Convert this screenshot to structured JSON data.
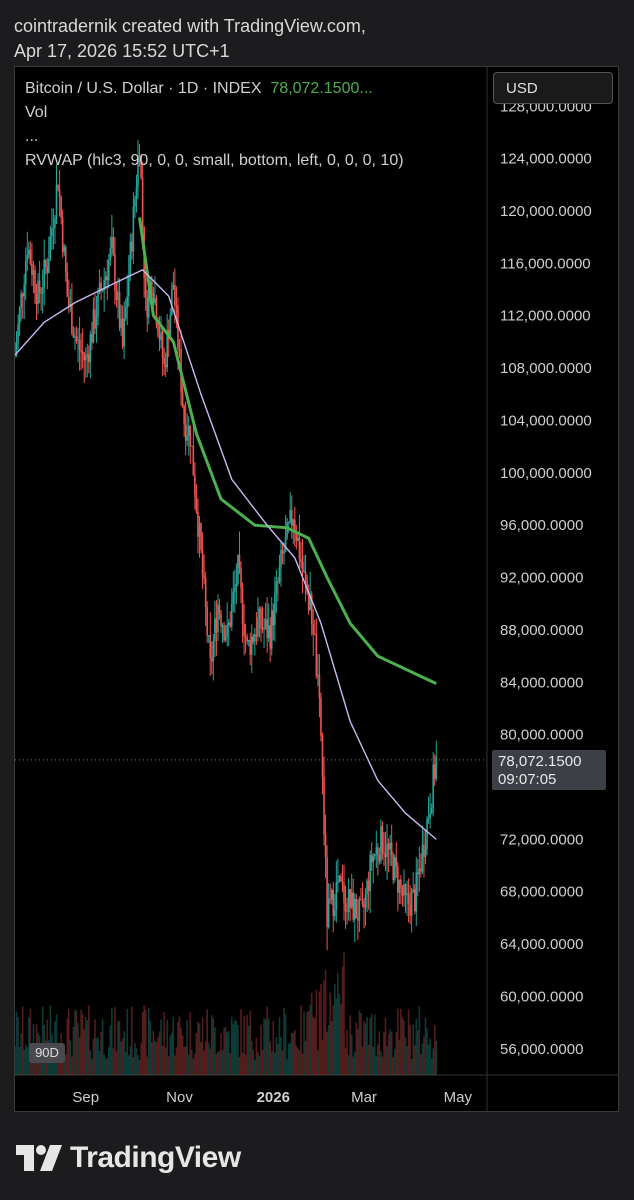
{
  "header": {
    "line1": "cointradernik created with TradingView.com,",
    "line2": "Apr 17, 2026 15:52 UTC+1"
  },
  "legend": {
    "symbol": "Bitcoin / U.S. Dollar · 1D · INDEX",
    "price": "78,072.1500...",
    "vol": "Vol",
    "more": "...",
    "indicator": "RVWAP (hlc3, 90, 0, 0, small, bottom, left, 0, 0, 0, 10)"
  },
  "currency_button": "USD",
  "price_tag": {
    "price": "78,072.1500",
    "countdown": "09:07:05"
  },
  "range_button": "90D",
  "footer": {
    "brand": "TradingView"
  },
  "colors": {
    "up": "#26a69a",
    "down": "#ef5350",
    "vwap_long": "#4caf50",
    "vwap_short": "#c9b8f2",
    "background": "#000000",
    "page": "#1c1c1e"
  },
  "icons": {
    "logo": "tradingview-logo-icon"
  },
  "chart_data": {
    "type": "candlestick",
    "title": "Bitcoin / U.S. Dollar · 1D · INDEX",
    "last_price": 78072.15,
    "ylim": [
      54000,
      131000
    ],
    "y_ticks": [
      "128,000.0000",
      "124,000.0000",
      "120,000.0000",
      "116,000.0000",
      "112,000.0000",
      "108,000.0000",
      "104,000.0000",
      "100,000.0000",
      "96,000.0000",
      "92,000.0000",
      "88,000.0000",
      "84,000.0000",
      "80,000.0000",
      "72,000.0000",
      "68,000.0000",
      "64,000.0000",
      "60,000.0000",
      "56,000.0000"
    ],
    "y_tick_values": [
      128000,
      124000,
      120000,
      116000,
      112000,
      108000,
      104000,
      100000,
      96000,
      92000,
      88000,
      84000,
      80000,
      72000,
      68000,
      64000,
      60000,
      56000
    ],
    "x_ticks": [
      "Sep",
      "Nov",
      "2026",
      "Mar",
      "May"
    ],
    "x_tick_dates": [
      "2025-09-01",
      "2025-11-01",
      "2026-01-01",
      "2026-03-01",
      "2026-05-01"
    ],
    "xlim": [
      "2025-07-17",
      "2026-05-20"
    ],
    "price_path": [
      [
        "2025-07-17",
        109000
      ],
      [
        "2025-07-25",
        117500
      ],
      [
        "2025-08-01",
        113500
      ],
      [
        "2025-08-07",
        116000
      ],
      [
        "2025-08-14",
        122500
      ],
      [
        "2025-08-20",
        113500
      ],
      [
        "2025-08-26",
        110000
      ],
      [
        "2025-09-01",
        108500
      ],
      [
        "2025-09-10",
        113500
      ],
      [
        "2025-09-18",
        117000
      ],
      [
        "2025-09-25",
        109500
      ],
      [
        "2025-10-02",
        119500
      ],
      [
        "2025-10-06",
        125500
      ],
      [
        "2025-10-10",
        112500
      ],
      [
        "2025-10-14",
        115000
      ],
      [
        "2025-10-22",
        108000
      ],
      [
        "2025-10-28",
        114500
      ],
      [
        "2025-11-04",
        104000
      ],
      [
        "2025-11-08",
        103000
      ],
      [
        "2025-11-14",
        95000
      ],
      [
        "2025-11-21",
        85000
      ],
      [
        "2025-11-26",
        90000
      ],
      [
        "2025-12-02",
        87500
      ],
      [
        "2025-12-09",
        92500
      ],
      [
        "2025-12-15",
        86500
      ],
      [
        "2025-12-22",
        88500
      ],
      [
        "2025-12-30",
        87800
      ],
      [
        "2026-01-06",
        93000
      ],
      [
        "2026-01-14",
        97000
      ],
      [
        "2026-01-20",
        92500
      ],
      [
        "2026-01-27",
        88500
      ],
      [
        "2026-02-01",
        80000
      ],
      [
        "2026-02-05",
        66000
      ],
      [
        "2026-02-12",
        68500
      ],
      [
        "2026-02-20",
        67000
      ],
      [
        "2026-02-28",
        66000
      ],
      [
        "2026-03-06",
        70500
      ],
      [
        "2026-03-13",
        72000
      ],
      [
        "2026-03-20",
        70000
      ],
      [
        "2026-03-28",
        67000
      ],
      [
        "2026-04-03",
        67500
      ],
      [
        "2026-04-10",
        72500
      ],
      [
        "2026-04-17",
        78072
      ]
    ],
    "series": [
      {
        "type": "line",
        "points": [
          [
            "2025-10-06",
            119500
          ],
          [
            "2025-10-15",
            112000
          ],
          [
            "2025-10-28",
            110000
          ],
          [
            "2025-11-12",
            103000
          ],
          [
            "2025-11-28",
            98000
          ],
          [
            "2025-12-20",
            96000
          ],
          [
            "2026-01-10",
            95800
          ],
          [
            "2026-01-24",
            95000
          ],
          [
            "2026-02-05",
            92000
          ],
          [
            "2026-02-20",
            88500
          ],
          [
            "2026-03-10",
            86000
          ],
          [
            "2026-04-17",
            83900
          ]
        ]
      },
      {
        "type": "line",
        "points": [
          [
            "2025-07-17",
            109000
          ],
          [
            "2025-08-05",
            111500
          ],
          [
            "2025-08-25",
            113000
          ],
          [
            "2025-09-20",
            114500
          ],
          [
            "2025-10-08",
            115500
          ],
          [
            "2025-10-25",
            113500
          ],
          [
            "2025-11-15",
            106000
          ],
          [
            "2025-12-05",
            99500
          ],
          [
            "2025-12-28",
            96000
          ],
          [
            "2026-01-15",
            93500
          ],
          [
            "2026-02-01",
            88500
          ],
          [
            "2026-02-20",
            81000
          ],
          [
            "2026-03-10",
            76500
          ],
          [
            "2026-03-28",
            74000
          ],
          [
            "2026-04-17",
            72000
          ]
        ]
      }
    ]
  }
}
